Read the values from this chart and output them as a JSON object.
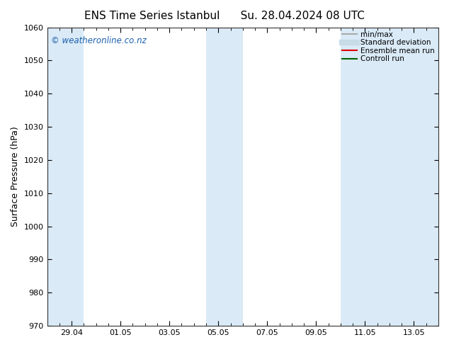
{
  "title_left": "ENS Time Series Istanbul",
  "title_right": "Su. 28.04.2024 08 UTC",
  "ylabel": "Surface Pressure (hPa)",
  "ylim": [
    970,
    1060
  ],
  "yticks": [
    970,
    980,
    990,
    1000,
    1010,
    1020,
    1030,
    1040,
    1050,
    1060
  ],
  "xlim": [
    0,
    16
  ],
  "xtick_labels": [
    "29.04",
    "01.05",
    "03.05",
    "05.05",
    "07.05",
    "09.05",
    "11.05",
    "13.05"
  ],
  "xtick_positions": [
    1,
    3,
    5,
    7,
    9,
    11,
    13,
    15
  ],
  "background_color": "#ffffff",
  "plot_bg_color": "#ffffff",
  "watermark": "© weatheronline.co.nz",
  "watermark_color": "#1a5fad",
  "shaded_bands": [
    {
      "x_start": 0.0,
      "x_end": 1.5
    },
    {
      "x_start": 6.5,
      "x_end": 8.0
    },
    {
      "x_start": 12.0,
      "x_end": 16.0
    }
  ],
  "shaded_color": "#daeaf7",
  "legend_items": [
    {
      "label": "min/max",
      "color": "#aaaaaa",
      "lw": 1.5
    },
    {
      "label": "Standard deviation",
      "color": "#c8dce8",
      "lw": 6
    },
    {
      "label": "Ensemble mean run",
      "color": "#dd0000",
      "lw": 1.5
    },
    {
      "label": "Controll run",
      "color": "#006600",
      "lw": 1.5
    }
  ],
  "title_fontsize": 11,
  "tick_fontsize": 8,
  "ylabel_fontsize": 9,
  "legend_fontsize": 7.5,
  "watermark_fontsize": 8.5
}
